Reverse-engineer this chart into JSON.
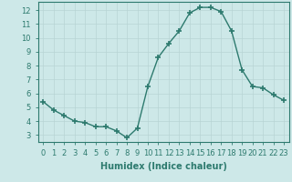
{
  "x": [
    0,
    1,
    2,
    3,
    4,
    5,
    6,
    7,
    8,
    9,
    10,
    11,
    12,
    13,
    14,
    15,
    16,
    17,
    18,
    19,
    20,
    21,
    22,
    23
  ],
  "y": [
    5.4,
    4.8,
    4.4,
    4.0,
    3.9,
    3.6,
    3.6,
    3.3,
    2.8,
    3.5,
    6.5,
    8.6,
    9.6,
    10.5,
    11.8,
    12.2,
    12.2,
    11.9,
    10.5,
    7.7,
    6.5,
    6.4,
    5.9,
    5.5
  ],
  "line_color": "#2d7a6e",
  "marker": "+",
  "markersize": 4,
  "markeredgewidth": 1.2,
  "linewidth": 1.0,
  "bg_color": "#cde8e8",
  "grid_color": "#b8d4d4",
  "xlabel": "Humidex (Indice chaleur)",
  "xlabel_fontsize": 7,
  "tick_fontsize": 6,
  "ylim": [
    2.5,
    12.6
  ],
  "xlim": [
    -0.5,
    23.5
  ],
  "yticks": [
    3,
    4,
    5,
    6,
    7,
    8,
    9,
    10,
    11,
    12
  ],
  "xticks": [
    0,
    1,
    2,
    3,
    4,
    5,
    6,
    7,
    8,
    9,
    10,
    11,
    12,
    13,
    14,
    15,
    16,
    17,
    18,
    19,
    20,
    21,
    22,
    23
  ]
}
